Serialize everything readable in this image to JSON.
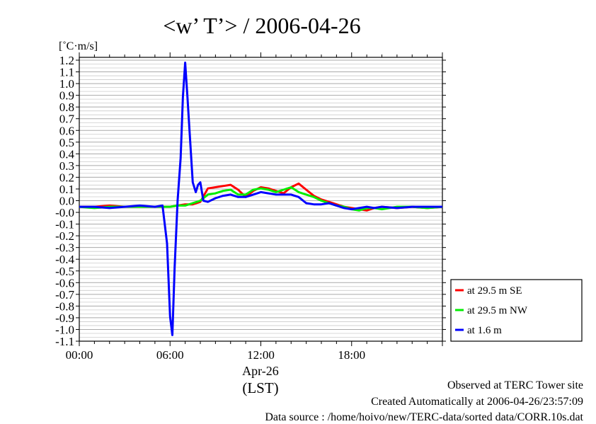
{
  "chart_data": {
    "type": "line",
    "title": "<w’ T’> / 2006-04-26",
    "ylabel": "[˚C·m/s]",
    "xlabel_lines": [
      "Apr-26",
      "(LST)"
    ],
    "ylim": [
      -1.1,
      1.2
    ],
    "xlim_hours": [
      0,
      24
    ],
    "y_ticks": [
      "1.2",
      "1.1",
      "1.0",
      "0.9",
      "0.8",
      "0.7",
      "0.6",
      "0.5",
      "0.4",
      "0.3",
      "0.2",
      "0.1",
      "0.0",
      "-0.0",
      "-0.1",
      "-0.2",
      "-0.3",
      "-0.4",
      "-0.5",
      "-0.6",
      "-0.7",
      "-0.8",
      "-0.9",
      "-1.0",
      "-1.1"
    ],
    "x_ticks": [
      "00:00",
      "06:00",
      "12:00",
      "18:00"
    ],
    "grid": "horizontal",
    "legend_position": "right",
    "series": [
      {
        "name": "at 29.5 m SE",
        "color": "#ff0000",
        "points": [
          [
            0,
            0
          ],
          [
            1,
            0
          ],
          [
            2,
            0.01
          ],
          [
            3,
            0
          ],
          [
            4,
            0
          ],
          [
            5,
            0
          ],
          [
            6,
            0
          ],
          [
            6.5,
            0.01
          ],
          [
            7,
            0.02
          ],
          [
            7.5,
            0.02
          ],
          [
            8,
            0.04
          ],
          [
            8.5,
            0.15
          ],
          [
            9,
            0.16
          ],
          [
            9.5,
            0.17
          ],
          [
            10,
            0.18
          ],
          [
            10.5,
            0.14
          ],
          [
            11,
            0.08
          ],
          [
            11.5,
            0.13
          ],
          [
            12,
            0.16
          ],
          [
            12.5,
            0.15
          ],
          [
            13,
            0.13
          ],
          [
            13.5,
            0.11
          ],
          [
            14,
            0.16
          ],
          [
            14.5,
            0.19
          ],
          [
            15,
            0.14
          ],
          [
            15.5,
            0.09
          ],
          [
            16,
            0.06
          ],
          [
            16.5,
            0.04
          ],
          [
            17,
            0.02
          ],
          [
            17.5,
            0
          ],
          [
            18,
            -0.01
          ],
          [
            18.5,
            -0.02
          ],
          [
            19,
            -0.03
          ],
          [
            19.5,
            -0.01
          ],
          [
            20,
            0
          ],
          [
            21,
            -0.01
          ],
          [
            22,
            0
          ],
          [
            23,
            -0.01
          ],
          [
            24,
            0
          ]
        ]
      },
      {
        "name": "at 29.5 m NW",
        "color": "#00ee00",
        "points": [
          [
            0,
            0
          ],
          [
            1,
            -0.01
          ],
          [
            2,
            0
          ],
          [
            3,
            0
          ],
          [
            4,
            0
          ],
          [
            5,
            0
          ],
          [
            6,
            0
          ],
          [
            6.5,
            0.01
          ],
          [
            7,
            0.01
          ],
          [
            7.5,
            0.03
          ],
          [
            8,
            0.05
          ],
          [
            8.5,
            0.1
          ],
          [
            9,
            0.11
          ],
          [
            9.5,
            0.13
          ],
          [
            10,
            0.14
          ],
          [
            10.5,
            0.1
          ],
          [
            11,
            0.1
          ],
          [
            11.5,
            0.14
          ],
          [
            12,
            0.15
          ],
          [
            12.5,
            0.14
          ],
          [
            13,
            0.12
          ],
          [
            13.5,
            0.14
          ],
          [
            14,
            0.16
          ],
          [
            14.5,
            0.12
          ],
          [
            15,
            0.1
          ],
          [
            15.5,
            0.08
          ],
          [
            16,
            0.05
          ],
          [
            16.5,
            0.03
          ],
          [
            17,
            0.01
          ],
          [
            17.5,
            0
          ],
          [
            18,
            -0.02
          ],
          [
            18.5,
            -0.03
          ],
          [
            19,
            -0.01
          ],
          [
            19.5,
            -0.01
          ],
          [
            20,
            -0.02
          ],
          [
            21,
            0
          ],
          [
            22,
            0
          ],
          [
            23,
            -0.01
          ],
          [
            24,
            0
          ]
        ]
      },
      {
        "name": "at 1.6 m",
        "color": "#0000ff",
        "points": [
          [
            0,
            0
          ],
          [
            1,
            0
          ],
          [
            2,
            -0.01
          ],
          [
            3,
            0
          ],
          [
            4,
            0.01
          ],
          [
            5,
            0
          ],
          [
            5.5,
            0.01
          ],
          [
            5.8,
            -0.3
          ],
          [
            6,
            -0.9
          ],
          [
            6.15,
            -1.05
          ],
          [
            6.3,
            -0.5
          ],
          [
            6.5,
            0.05
          ],
          [
            6.7,
            0.4
          ],
          [
            6.85,
            0.9
          ],
          [
            7,
            1.18
          ],
          [
            7.15,
            0.9
          ],
          [
            7.3,
            0.6
          ],
          [
            7.5,
            0.2
          ],
          [
            7.7,
            0.12
          ],
          [
            7.85,
            0.18
          ],
          [
            8,
            0.2
          ],
          [
            8.2,
            0.05
          ],
          [
            8.5,
            0.04
          ],
          [
            9,
            0.07
          ],
          [
            9.5,
            0.09
          ],
          [
            10,
            0.1
          ],
          [
            10.5,
            0.08
          ],
          [
            11,
            0.08
          ],
          [
            11.5,
            0.1
          ],
          [
            12,
            0.12
          ],
          [
            12.5,
            0.11
          ],
          [
            13,
            0.1
          ],
          [
            13.5,
            0.1
          ],
          [
            14,
            0.1
          ],
          [
            14.5,
            0.08
          ],
          [
            15,
            0.03
          ],
          [
            15.5,
            0.02
          ],
          [
            16,
            0.02
          ],
          [
            16.5,
            0.03
          ],
          [
            17,
            0.01
          ],
          [
            17.5,
            -0.01
          ],
          [
            18,
            -0.02
          ],
          [
            18.5,
            -0.01
          ],
          [
            19,
            0
          ],
          [
            19.5,
            -0.01
          ],
          [
            20,
            0
          ],
          [
            21,
            -0.01
          ],
          [
            22,
            0
          ],
          [
            23,
            0
          ],
          [
            24,
            0
          ]
        ]
      }
    ]
  },
  "footer": {
    "line1": "Observed at TERC Tower site",
    "line2": "Created Automatically at 2006-04-26/23:57:09",
    "line3": "Data source : /home/hoivo/new/TERC-data/sorted  data/CORR.10s.dat"
  }
}
